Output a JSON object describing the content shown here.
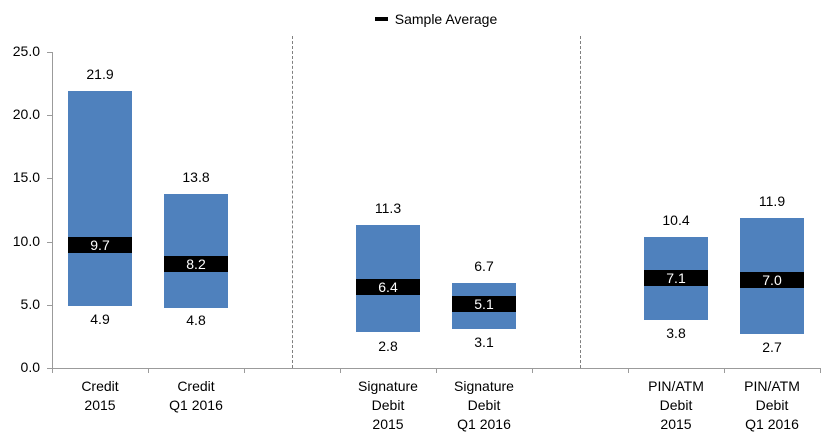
{
  "legend": {
    "label": "Sample Average"
  },
  "chart_data": {
    "type": "bar",
    "subtype": "floating-range-bars-with-average-marker",
    "title": "",
    "xlabel": "",
    "ylabel": "",
    "categories": [
      "Credit 2015",
      "Credit Q1 2016",
      "Signature Debit 2015",
      "Signature Debit Q1 2016",
      "PIN/ATM Debit 2015",
      "PIN/ATM Debit Q1 2016"
    ],
    "category_label_lines": [
      [
        "Credit",
        "2015"
      ],
      [
        "Credit",
        "Q1 2016"
      ],
      [
        "Signature",
        "Debit",
        "2015"
      ],
      [
        "Signature",
        "Debit",
        "Q1 2016"
      ],
      [
        "PIN/ATM",
        "Debit",
        "2015"
      ],
      [
        "PIN/ATM",
        "Debit",
        "Q1 2016"
      ]
    ],
    "groups": [
      [
        "Credit 2015",
        "Credit Q1 2016"
      ],
      [
        "Signature Debit 2015",
        "Signature Debit Q1 2016"
      ],
      [
        "PIN/ATM Debit 2015",
        "PIN/ATM Debit Q1 2016"
      ]
    ],
    "series": [
      {
        "name": "range_low",
        "values": [
          4.9,
          4.8,
          2.8,
          3.1,
          3.8,
          2.7
        ]
      },
      {
        "name": "range_high",
        "values": [
          21.9,
          13.8,
          11.3,
          6.7,
          10.4,
          11.9
        ]
      },
      {
        "name": "sample_average",
        "values": [
          9.7,
          8.2,
          6.4,
          5.1,
          7.1,
          7.0
        ]
      }
    ],
    "ylim": [
      0,
      25
    ],
    "ytick_step": 5,
    "ytick_labels": [
      "0.0",
      "5.0",
      "10.0",
      "15.0",
      "20.0",
      "25.0"
    ],
    "grid": false,
    "legend_position": "top-center",
    "group_separator_style": "dashed-vertical-line",
    "colors": {
      "bar": "#4F81BD",
      "average_marker": "#000000",
      "average_text": "#FFFFFF",
      "value_text": "#000000",
      "axis": "#9B9B9B",
      "separator": "#808080"
    }
  }
}
